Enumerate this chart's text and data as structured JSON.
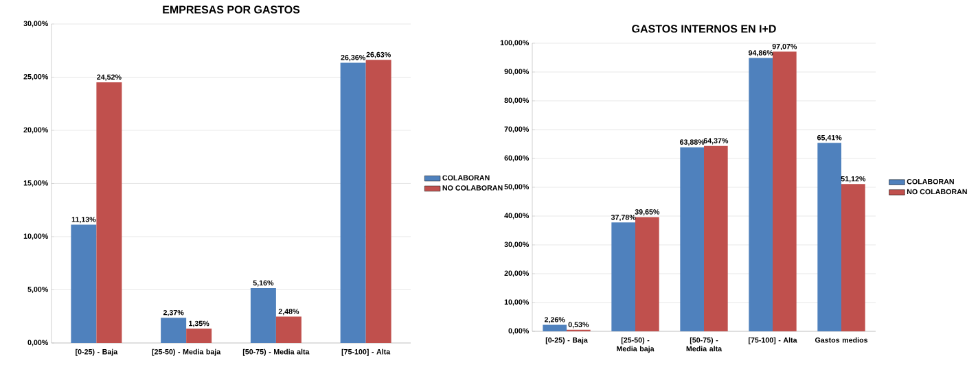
{
  "chart_data": [
    {
      "type": "bar",
      "title": "EMPRESAS POR GASTOS",
      "categories": [
        "[0-25) - Baja",
        "[25-50) - Media baja",
        "[50-75) - Media alta",
        "[75-100] - Alta"
      ],
      "series": [
        {
          "name": "COLABORAN",
          "color": "#4f81bd",
          "values": [
            11.13,
            2.37,
            5.16,
            26.36
          ],
          "value_labels": [
            "11,13%",
            "2,37%",
            "5,16%",
            "26,36%"
          ]
        },
        {
          "name": "NO COLABORAN",
          "color": "#c0504d",
          "values": [
            24.52,
            1.35,
            2.48,
            26.63
          ],
          "value_labels": [
            "24,52%",
            "1,35%",
            "2,48%",
            "26,63%"
          ]
        }
      ],
      "ylim": [
        0,
        30
      ],
      "yticks": [
        {
          "value": 0,
          "label": "0,00%"
        },
        {
          "value": 5,
          "label": "5,00%"
        },
        {
          "value": 10,
          "label": "10,00%"
        },
        {
          "value": 15,
          "label": "15,00%"
        },
        {
          "value": 20,
          "label": "20,00%"
        },
        {
          "value": 25,
          "label": "25,00%"
        },
        {
          "value": 30,
          "label": "30,00%"
        }
      ],
      "grid": "y",
      "legend": "right"
    },
    {
      "type": "bar",
      "title": "GASTOS INTERNOS EN I+D",
      "categories": [
        "[0-25) - Baja",
        "[25-50) - Media baja",
        "[50-75) - Media alta",
        "[75-100] - Alta",
        "Gastos medios"
      ],
      "series": [
        {
          "name": "COLABORAN",
          "color": "#4f81bd",
          "values": [
            2.26,
            37.78,
            63.88,
            94.86,
            65.41
          ],
          "value_labels": [
            "2,26%",
            "37,78%",
            "63,88%",
            "94,86%",
            "65,41%"
          ]
        },
        {
          "name": "NO COLABORAN",
          "color": "#c0504d",
          "values": [
            0.53,
            39.65,
            64.37,
            97.07,
            51.12
          ],
          "value_labels": [
            "0,53%",
            "39,65%",
            "64,37%",
            "97,07%",
            "51,12%"
          ]
        }
      ],
      "ylim": [
        0,
        100
      ],
      "yticks": [
        {
          "value": 0,
          "label": "0,00%"
        },
        {
          "value": 10,
          "label": "10,00%"
        },
        {
          "value": 20,
          "label": "20,00%"
        },
        {
          "value": 30,
          "label": "30,00%"
        },
        {
          "value": 40,
          "label": "40,00%"
        },
        {
          "value": 50,
          "label": "50,00%"
        },
        {
          "value": 60,
          "label": "60,00%"
        },
        {
          "value": 70,
          "label": "70,00%"
        },
        {
          "value": 80,
          "label": "80,00%"
        },
        {
          "value": 90,
          "label": "90,00%"
        },
        {
          "value": 100,
          "label": "100,00%"
        }
      ],
      "grid": "y",
      "legend": "right"
    }
  ]
}
